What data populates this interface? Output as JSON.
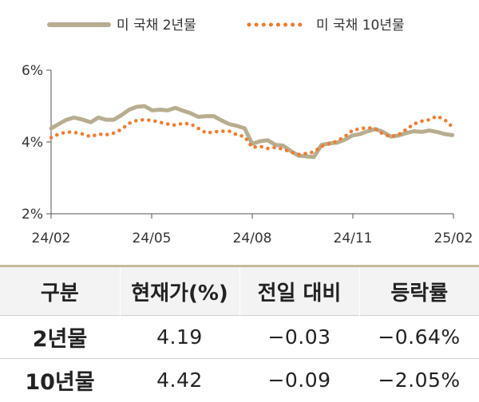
{
  "chart_data": {
    "type": "line",
    "legend_placement": "top",
    "grid": false,
    "x_ticks": [
      "24/02",
      "24/05",
      "24/08",
      "24/11",
      "25/02"
    ],
    "y_ticks": [
      "2%",
      "4%",
      "6%"
    ],
    "ylim": [
      2,
      6
    ],
    "series": [
      {
        "name": "미 국채 2년물",
        "style": "solid",
        "color": "#b8ad8f",
        "x": [
          "2024-02-01",
          "2024-02-08",
          "2024-02-15",
          "2024-02-22",
          "2024-03-01",
          "2024-03-08",
          "2024-03-15",
          "2024-03-22",
          "2024-03-29",
          "2024-04-05",
          "2024-04-12",
          "2024-04-19",
          "2024-04-26",
          "2024-05-03",
          "2024-05-10",
          "2024-05-17",
          "2024-05-24",
          "2024-05-31",
          "2024-06-07",
          "2024-06-14",
          "2024-06-21",
          "2024-06-28",
          "2024-07-05",
          "2024-07-12",
          "2024-07-19",
          "2024-07-26",
          "2024-08-02",
          "2024-08-09",
          "2024-08-16",
          "2024-08-23",
          "2024-08-30",
          "2024-09-06",
          "2024-09-13",
          "2024-09-20",
          "2024-09-27",
          "2024-10-04",
          "2024-10-11",
          "2024-10-18",
          "2024-10-25",
          "2024-11-01",
          "2024-11-08",
          "2024-11-15",
          "2024-11-22",
          "2024-11-29",
          "2024-12-06",
          "2024-12-13",
          "2024-12-20",
          "2024-12-27",
          "2025-01-03",
          "2025-01-10",
          "2025-01-17",
          "2025-01-24",
          "2025-01-31"
        ],
        "values": [
          4.38,
          4.5,
          4.62,
          4.68,
          4.62,
          4.55,
          4.68,
          4.62,
          4.62,
          4.75,
          4.9,
          4.98,
          5.0,
          4.88,
          4.9,
          4.88,
          4.95,
          4.87,
          4.8,
          4.7,
          4.72,
          4.72,
          4.6,
          4.5,
          4.45,
          4.38,
          3.95,
          4.02,
          4.05,
          3.92,
          3.9,
          3.75,
          3.62,
          3.6,
          3.58,
          3.92,
          3.96,
          3.98,
          4.06,
          4.18,
          4.22,
          4.3,
          4.36,
          4.28,
          4.15,
          4.18,
          4.25,
          4.3,
          4.28,
          4.32,
          4.28,
          4.22,
          4.19
        ]
      },
      {
        "name": "미 국채 10년물",
        "style": "dotted",
        "color": "#ed7d31",
        "x": [
          "2024-02-01",
          "2024-02-08",
          "2024-02-15",
          "2024-02-22",
          "2024-03-01",
          "2024-03-08",
          "2024-03-15",
          "2024-03-22",
          "2024-03-29",
          "2024-04-05",
          "2024-04-12",
          "2024-04-19",
          "2024-04-26",
          "2024-05-03",
          "2024-05-10",
          "2024-05-17",
          "2024-05-24",
          "2024-05-31",
          "2024-06-07",
          "2024-06-14",
          "2024-06-21",
          "2024-06-28",
          "2024-07-05",
          "2024-07-12",
          "2024-07-19",
          "2024-07-26",
          "2024-08-02",
          "2024-08-09",
          "2024-08-16",
          "2024-08-23",
          "2024-08-30",
          "2024-09-06",
          "2024-09-13",
          "2024-09-20",
          "2024-09-27",
          "2024-10-04",
          "2024-10-11",
          "2024-10-18",
          "2024-10-25",
          "2024-11-01",
          "2024-11-08",
          "2024-11-15",
          "2024-11-22",
          "2024-11-29",
          "2024-12-06",
          "2024-12-13",
          "2024-12-20",
          "2024-12-27",
          "2025-01-03",
          "2025-01-10",
          "2025-01-17",
          "2025-01-24",
          "2025-01-31"
        ],
        "values": [
          4.12,
          4.22,
          4.28,
          4.27,
          4.22,
          4.15,
          4.22,
          4.2,
          4.25,
          4.35,
          4.52,
          4.6,
          4.62,
          4.6,
          4.55,
          4.5,
          4.47,
          4.52,
          4.5,
          4.38,
          4.25,
          4.28,
          4.3,
          4.3,
          4.2,
          4.15,
          3.85,
          3.88,
          3.82,
          3.85,
          3.8,
          3.72,
          3.65,
          3.68,
          3.72,
          3.88,
          3.95,
          4.02,
          4.15,
          4.32,
          4.37,
          4.4,
          4.36,
          4.22,
          4.15,
          4.2,
          4.35,
          4.5,
          4.58,
          4.62,
          4.72,
          4.62,
          4.42
        ]
      }
    ]
  },
  "table": {
    "headers": [
      "구분",
      "현재가(%)",
      "전일 대비",
      "등락률"
    ],
    "rows": [
      {
        "label": "2년물",
        "price": "4.19",
        "change": "−0.03",
        "rate": "−0.64%"
      },
      {
        "label": "10년물",
        "price": "4.42",
        "change": "−0.09",
        "rate": "−2.05%"
      }
    ]
  }
}
